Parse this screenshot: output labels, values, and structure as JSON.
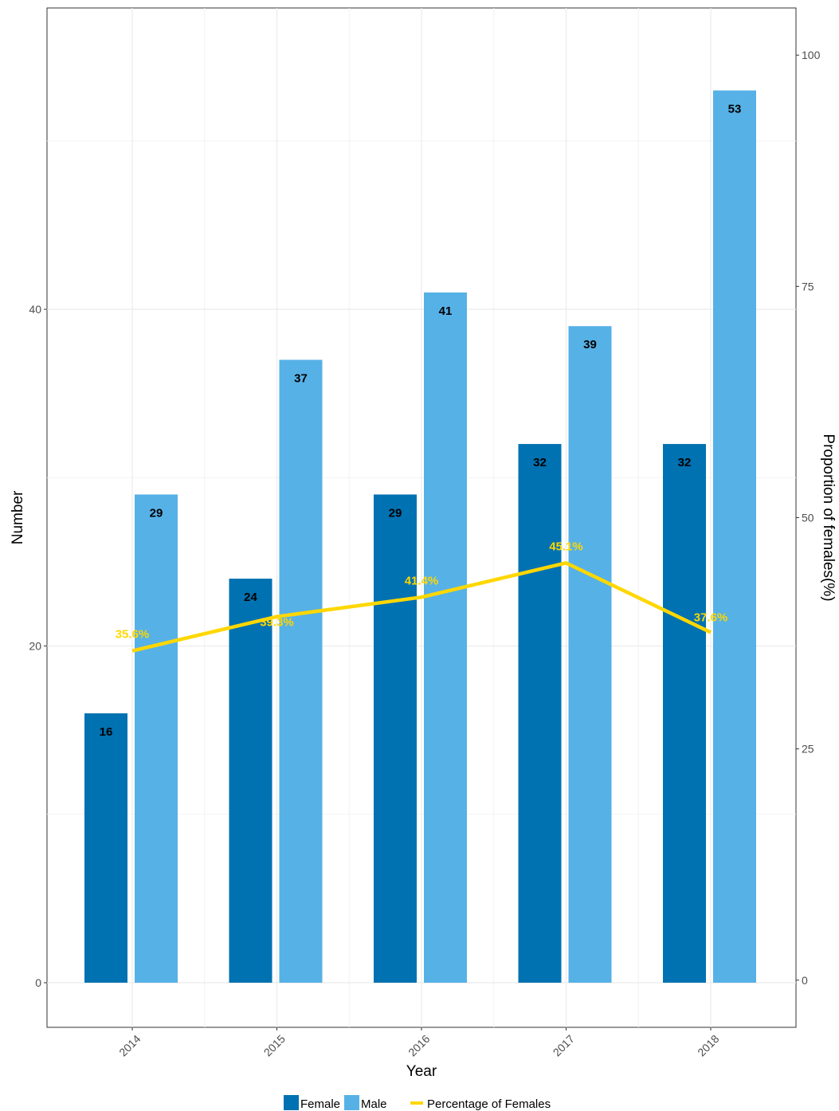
{
  "chart_data": {
    "type": "bar",
    "categories": [
      "2014",
      "2015",
      "2016",
      "2017",
      "2018"
    ],
    "series": [
      {
        "name": "Female",
        "values": [
          16,
          24,
          29,
          32,
          32
        ],
        "color": "#0071b1",
        "axis": "left"
      },
      {
        "name": "Male",
        "values": [
          29,
          37,
          41,
          39,
          53
        ],
        "color": "#56b1e6",
        "axis": "left"
      },
      {
        "name": "Percentage of Females",
        "type": "line",
        "values": [
          35.6,
          39.3,
          41.4,
          45.1,
          37.6
        ],
        "labels": [
          "35.6%",
          "39.3%",
          "41.4%",
          "45.1%",
          "37.6%"
        ],
        "color": "#ffd700",
        "axis": "right"
      }
    ],
    "xlabel": "Year",
    "ylabel": "Number",
    "y2label": "Proportion of females(%)",
    "ylim": [
      -2.65,
      57.9
    ],
    "yticks": [
      "0",
      "20",
      "40"
    ],
    "y2lim": [
      -5.1,
      105.1
    ],
    "y2ticks": [
      "0",
      "25",
      "50",
      "75",
      "100"
    ],
    "grid": true,
    "legend_position": "bottom"
  }
}
